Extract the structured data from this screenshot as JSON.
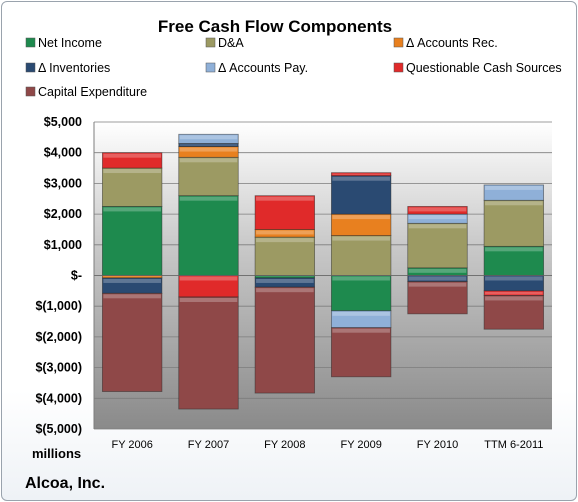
{
  "chart_data": {
    "type": "bar",
    "stacked": true,
    "title": "Free Cash Flow Components",
    "units_label": "millions",
    "company": "Alcoa, Inc.",
    "categories": [
      "FY 2006",
      "FY 2007",
      "FY 2008",
      "FY 2009",
      "FY 2010",
      "TTM 6-2011"
    ],
    "ylim": [
      -5000,
      5000
    ],
    "yticks": [
      5000,
      4000,
      3000,
      2000,
      1000,
      0,
      -1000,
      -2000,
      -3000,
      -4000,
      -5000
    ],
    "ytick_labels": [
      "$5,000",
      "$4,000",
      "$3,000",
      "$2,000",
      "$1,000",
      "$-",
      "$(1,000)",
      "$(2,000)",
      "$(3,000)",
      "$(4,000)",
      "$(5,000)"
    ],
    "grid": true,
    "legend_position": "top",
    "series": [
      {
        "name": "Net Income",
        "color": "#1e8a4e",
        "values": [
          2250,
          2600,
          -80,
          -1150,
          250,
          950
        ]
      },
      {
        "name": "D&A",
        "color": "#9c9a63",
        "values": [
          1250,
          1250,
          1250,
          1300,
          1450,
          1500
        ]
      },
      {
        "name": "Δ Accounts Rec.",
        "color": "#e8801f",
        "values": [
          -80,
          350,
          250,
          700,
          0,
          0
        ]
      },
      {
        "name": "Δ Inventories",
        "color": "#2a4a72",
        "values": [
          -500,
          100,
          -300,
          1250,
          -200,
          -500
        ]
      },
      {
        "name": "Δ Accounts Pay.",
        "color": "#8fb0d8",
        "values": [
          0,
          300,
          0,
          -550,
          300,
          500
        ]
      },
      {
        "name": "Questionable Cash Sources",
        "color": "#e02a2a",
        "values": [
          500,
          -700,
          1100,
          100,
          250,
          -150
        ]
      },
      {
        "name": "Capital Expenditure",
        "color": "#8f4848",
        "values": [
          -3200,
          -3650,
          -3450,
          -1600,
          -1050,
          -1100
        ]
      }
    ]
  }
}
